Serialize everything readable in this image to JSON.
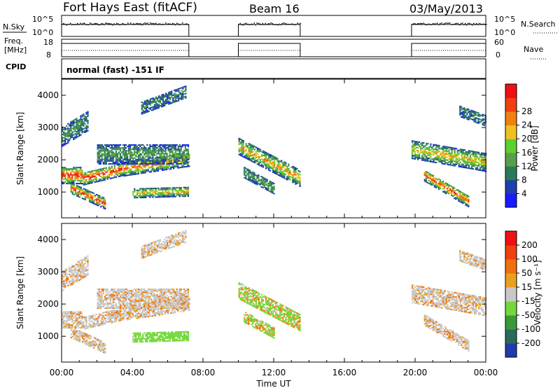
{
  "header": {
    "radar": "Fort Hays East (fitACF)",
    "beam": "Beam 16",
    "date": "03/May/2013"
  },
  "status_panels": {
    "nsky_label": "N.Sky",
    "nsky_ticks": [
      "10^5",
      "10^0"
    ],
    "nsearch_label": "N.Search",
    "nsearch_ticks": [
      "10^5",
      "10^0"
    ],
    "freq_label_1": "Freq.",
    "freq_label_2": "[MHz]",
    "freq_ticks": [
      "18",
      "8"
    ],
    "nave_label": "Nave",
    "nave_ticks": [
      "60",
      "0"
    ],
    "cpid_label": "CPID",
    "cpid_text": "normal (fast) -151 IF"
  },
  "colors": {
    "power_scale": [
      "#1a1aff",
      "#1e3faa",
      "#2b7a5a",
      "#5a9e4a",
      "#5fcf2f",
      "#f0c020",
      "#f08010",
      "#f04010",
      "#ee1111"
    ],
    "velocity_scale": [
      "#1f3caa",
      "#2a6a5a",
      "#3a9a3a",
      "#74d83a",
      "#c8c8c8",
      "#e8a020",
      "#f07010",
      "#f04010",
      "#ee1111"
    ]
  },
  "chart_data": [
    {
      "type": "heatmap",
      "name": "power",
      "ylabel": "Slant Range [km]",
      "y_ticks": [
        1000,
        2000,
        3000,
        4000
      ],
      "ylim": [
        200,
        4500
      ],
      "colorbar_label": "Power [dB]",
      "colorbar_ticks": [
        "4",
        "8",
        "12",
        "16",
        "20",
        "24",
        "28"
      ],
      "data_windows_ut": [
        [
          0,
          7.2
        ],
        [
          10.0,
          13.5
        ],
        [
          19.8,
          24.0
        ]
      ]
    },
    {
      "type": "heatmap",
      "name": "velocity",
      "ylabel": "Slant Range [km]",
      "y_ticks": [
        1000,
        2000,
        3000,
        4000
      ],
      "ylim": [
        200,
        4500
      ],
      "colorbar_label": "Velocity [m s⁻¹]",
      "colorbar_ticks": [
        "200",
        "100",
        "50",
        "15",
        "-15",
        "-50",
        "-100",
        "-200"
      ],
      "data_windows_ut": [
        [
          0,
          7.2
        ],
        [
          10.0,
          13.5
        ],
        [
          19.8,
          24.0
        ]
      ]
    }
  ],
  "x_axis": {
    "label": "Time UT",
    "ticks": [
      "00:00",
      "04:00",
      "08:00",
      "12:00",
      "16:00",
      "20:00",
      "00:00"
    ],
    "xlim_hours": [
      0,
      24
    ]
  }
}
